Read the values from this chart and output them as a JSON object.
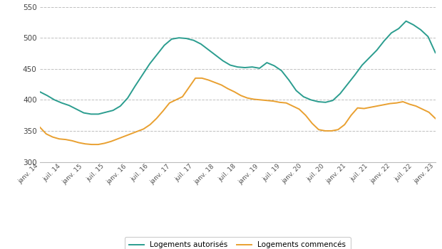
{
  "teal_color": "#2b9d8f",
  "orange_color": "#e9a030",
  "bg_color": "#ffffff",
  "grid_color": "#c0c0c0",
  "spine_color": "#bbbbbb",
  "ylim": [
    300,
    555
  ],
  "yticks": [
    300,
    350,
    400,
    450,
    500,
    550
  ],
  "xlim_months": 108,
  "legend_labels": [
    "Logements autorisés",
    "Logements commencés"
  ],
  "xtick_labels": [
    "janv. 14",
    "juil. 14",
    "janv. 15",
    "juil. 15",
    "janv. 16",
    "juil. 16",
    "janv. 17",
    "juil. 17",
    "janv. 18",
    "juil. 18",
    "janv. 19",
    "juil. 19",
    "janv. 20",
    "juil. 20",
    "janv. 21",
    "juil. 21",
    "janv. 22",
    "juil. 22",
    "janv. 23"
  ],
  "autorises": [
    413,
    407,
    400,
    395,
    391,
    385,
    379,
    377,
    377,
    380,
    383,
    390,
    403,
    422,
    440,
    458,
    473,
    488,
    498,
    500,
    499,
    496,
    490,
    481,
    472,
    463,
    456,
    453,
    452,
    453,
    451,
    460,
    455,
    447,
    432,
    415,
    405,
    400,
    397,
    396,
    399,
    410,
    425,
    440,
    456,
    468,
    480,
    495,
    508,
    515,
    527,
    521,
    513,
    502,
    476
  ],
  "commences": [
    356,
    345,
    340,
    337,
    336,
    334,
    331,
    329,
    328,
    328,
    330,
    333,
    337,
    341,
    345,
    349,
    353,
    360,
    370,
    382,
    395,
    400,
    405,
    420,
    435,
    435,
    432,
    428,
    424,
    418,
    413,
    407,
    403,
    401,
    400,
    399,
    398,
    396,
    395,
    390,
    385,
    375,
    362,
    352,
    350,
    350,
    352,
    360,
    375,
    387,
    386,
    388,
    390,
    392,
    394,
    395,
    397,
    393,
    390,
    385,
    380,
    370
  ]
}
